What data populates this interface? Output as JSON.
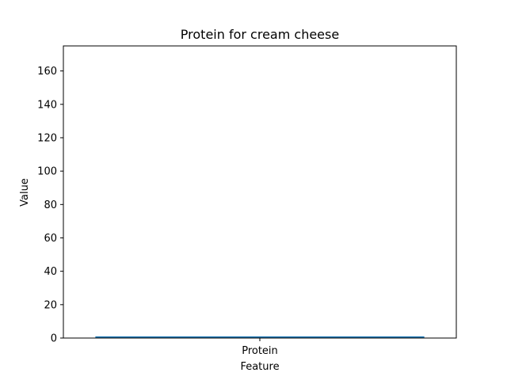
{
  "chart_data": {
    "type": "bar",
    "title": "Protein for cream cheese",
    "xlabel": "Feature",
    "ylabel": "Value",
    "categories": [
      "Protein"
    ],
    "values": [
      1
    ],
    "ylim": [
      0,
      175
    ],
    "yticks": [
      0,
      20,
      40,
      60,
      80,
      100,
      120,
      140,
      160
    ],
    "grid": false,
    "legend": "none",
    "bar_color": "#1f77b4"
  }
}
